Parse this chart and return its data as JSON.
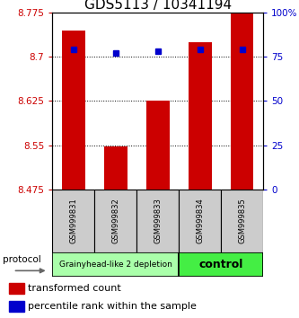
{
  "title": "GDS5113 / 10341194",
  "samples": [
    "GSM999831",
    "GSM999832",
    "GSM999833",
    "GSM999834",
    "GSM999835"
  ],
  "bar_values": [
    8.745,
    8.548,
    8.625,
    8.725,
    8.775
  ],
  "percentile_values": [
    79,
    77,
    78,
    79,
    79
  ],
  "ylim_left": [
    8.475,
    8.775
  ],
  "ylim_right": [
    0,
    100
  ],
  "yticks_left": [
    8.475,
    8.55,
    8.625,
    8.7,
    8.775
  ],
  "ytick_labels_left": [
    "8.475",
    "8.55",
    "8.625",
    "8.7",
    "8.775"
  ],
  "yticks_right": [
    0,
    25,
    50,
    75,
    100
  ],
  "ytick_labels_right": [
    "0",
    "25",
    "50",
    "75",
    "100%"
  ],
  "bar_color": "#cc0000",
  "dot_color": "#0000cc",
  "bar_bottom": 8.475,
  "groups": [
    {
      "label": "Grainyhead-like 2 depletion",
      "samples": [
        0,
        1,
        2
      ],
      "color": "#aaffaa",
      "text_weight": "normal",
      "fontsize": 6.5
    },
    {
      "label": "control",
      "samples": [
        3,
        4
      ],
      "color": "#44ee44",
      "text_weight": "bold",
      "fontsize": 9
    }
  ],
  "protocol_label": "protocol",
  "legend_items": [
    {
      "color": "#cc0000",
      "label": "transformed count"
    },
    {
      "color": "#0000cc",
      "label": "percentile rank within the sample"
    }
  ],
  "bar_width": 0.55,
  "title_fontsize": 11,
  "tick_fontsize": 7.5,
  "sample_fontsize": 6,
  "legend_fontsize": 8
}
